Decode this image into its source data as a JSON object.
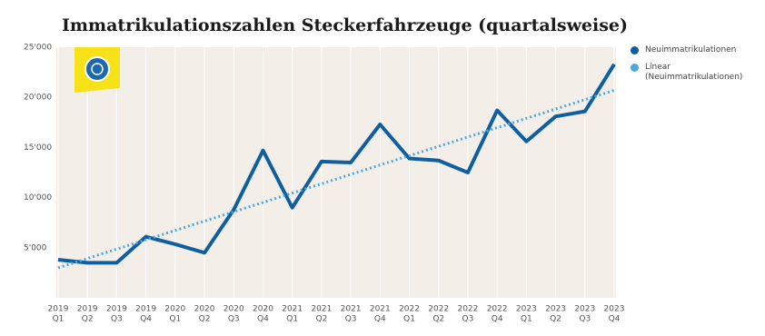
{
  "chart_data": {
    "type": "line",
    "title": "Immatrikulationszahlen Steckerfahrzeuge (quartalsweise)",
    "categories": [
      [
        "2019",
        "Q1"
      ],
      [
        "2019",
        "Q2"
      ],
      [
        "2019",
        "Q3"
      ],
      [
        "2019",
        "Q4"
      ],
      [
        "2020",
        "Q1"
      ],
      [
        "2020",
        "Q2"
      ],
      [
        "2020",
        "Q3"
      ],
      [
        "2020",
        "Q4"
      ],
      [
        "2021",
        "Q1"
      ],
      [
        "2021",
        "Q2"
      ],
      [
        "2021",
        "Q3"
      ],
      [
        "2021",
        "Q4"
      ],
      [
        "2022",
        "Q1"
      ],
      [
        "2022",
        "Q2"
      ],
      [
        "2022",
        "Q3"
      ],
      [
        "2022",
        "Q4"
      ],
      [
        "2023",
        "Q1"
      ],
      [
        "2023",
        "Q2"
      ],
      [
        "2023",
        "Q3"
      ],
      [
        "2023",
        "Q4"
      ]
    ],
    "series": [
      {
        "name": "Neuimmatrikulationen",
        "color": "#0f5fa0",
        "style": "solid",
        "values": [
          3800,
          3500,
          3500,
          6100,
          5350,
          4500,
          8800,
          14700,
          9000,
          13600,
          13500,
          17300,
          13900,
          13700,
          12500,
          18700,
          15600,
          18100,
          18600,
          23300
        ]
      },
      {
        "name": "Linear (Neuimmatrikulationen)",
        "color": "#4fa8dc",
        "style": "dotted",
        "values": [
          3000,
          3930,
          4860,
          5790,
          6730,
          7660,
          8590,
          9520,
          10450,
          11380,
          12320,
          13250,
          14180,
          15110,
          16040,
          16970,
          17910,
          18840,
          19770,
          20700
        ]
      }
    ],
    "ylim": [
      0,
      25000
    ],
    "yticks": [
      {
        "value": 5000,
        "label": "5'000"
      },
      {
        "value": 10000,
        "label": "10'000"
      },
      {
        "value": 15000,
        "label": "15'000"
      },
      {
        "value": 20000,
        "label": "20'000"
      },
      {
        "value": 25000,
        "label": "25'000"
      }
    ]
  }
}
